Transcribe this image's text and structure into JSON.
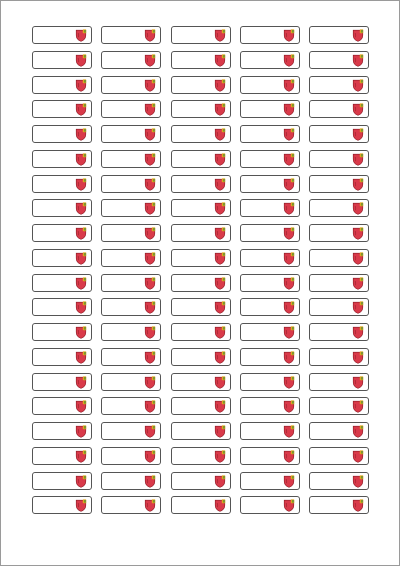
{
  "sheet": {
    "rows": 20,
    "columns": 5,
    "label_icon": "shield-crest-icon",
    "colors": {
      "label_border": "#555555",
      "crest_red": "#d93a4a",
      "crest_gold": "#e0a51c",
      "crest_green": "#3f8b3a",
      "sheet_border": "#9a9a9a"
    }
  }
}
